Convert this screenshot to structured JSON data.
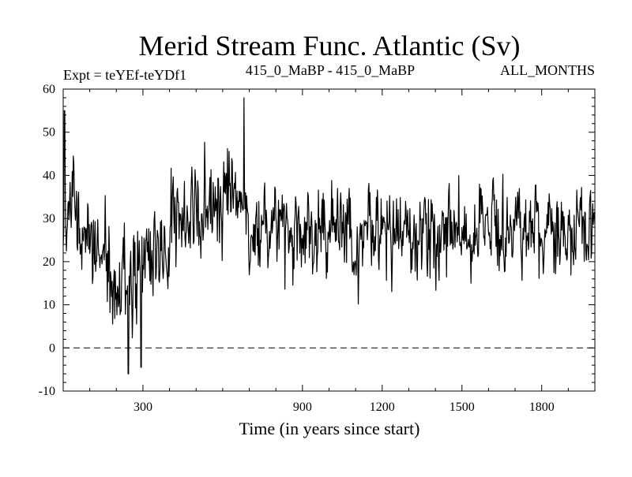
{
  "chart_data": {
    "type": "line",
    "title": "Merid Stream Func. Atlantic (Sv)",
    "subtitle_left": "Expt = teYEf-teYDf1",
    "subtitle_center": "415_0_MaBP - 415_0_MaBP",
    "subtitle_right": "ALL_MONTHS",
    "xlabel": "Time (in years since start)",
    "ylabel": "",
    "xlim": [
      0,
      2000
    ],
    "ylim": [
      -10,
      60
    ],
    "x_ticks": [
      300,
      900,
      1200,
      1500,
      1800
    ],
    "x_tick_labels": [
      "300",
      "900",
      "1200",
      "1500",
      "1800"
    ],
    "x_tick_label_display": {
      "300": "300",
      "900": "900",
      "1200": "1200",
      "1500": "1500",
      "1800": "1800"
    },
    "y_ticks": [
      -10,
      0,
      10,
      20,
      30,
      40,
      50,
      60
    ],
    "y_tick_labels": [
      "-10",
      "0",
      "10",
      "20",
      "30",
      "40",
      "50",
      "60"
    ],
    "reference_line": {
      "y": 0,
      "style": "dashed"
    },
    "series": [
      {
        "name": "Merid Stream Func. Atlantic",
        "color": "#000000",
        "sample_every_years": 2,
        "segments": [
          {
            "x_start": 0,
            "x_end": 60,
            "mean": 32,
            "std": 8
          },
          {
            "x_start": 60,
            "x_end": 160,
            "mean": 25,
            "std": 7
          },
          {
            "x_start": 160,
            "x_end": 290,
            "mean": 16,
            "std": 8
          },
          {
            "x_start": 290,
            "x_end": 400,
            "mean": 22,
            "std": 8
          },
          {
            "x_start": 400,
            "x_end": 520,
            "mean": 31,
            "std": 8
          },
          {
            "x_start": 520,
            "x_end": 700,
            "mean": 35,
            "std": 8
          },
          {
            "x_start": 700,
            "x_end": 2000,
            "mean": 27,
            "std": 7
          }
        ],
        "notable_points": [
          {
            "x": 245,
            "y": -6
          },
          {
            "x": 293,
            "y": -4.5
          },
          {
            "x": 680,
            "y": 58
          },
          {
            "x": 5,
            "y": 55
          }
        ]
      }
    ]
  }
}
